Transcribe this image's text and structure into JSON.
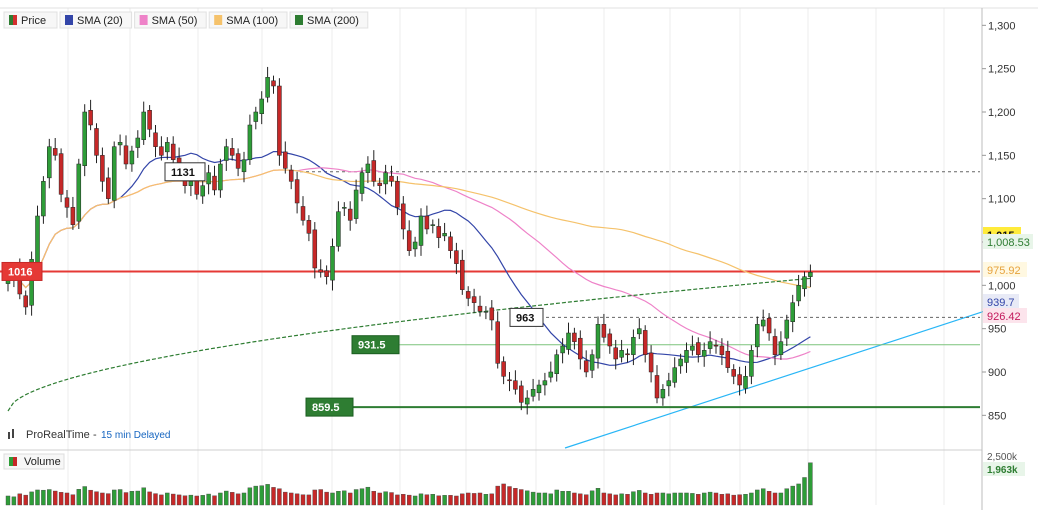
{
  "legend": {
    "items": [
      {
        "label": "Price",
        "color": "#2e7d32",
        "color2": "#d32f2f"
      },
      {
        "label": "SMA (20)",
        "color": "#3345a8"
      },
      {
        "label": "SMA (50)",
        "color": "#ee82c8"
      },
      {
        "label": "SMA (100)",
        "color": "#f5c26b"
      },
      {
        "label": "SMA (200)",
        "color": "#2e7d32"
      }
    ]
  },
  "watermark": {
    "brand": "ProRealTime",
    "separator": " - ",
    "delay": "15 min Delayed"
  },
  "volume_panel": {
    "label": "Volume",
    "axis_top": "2,500k",
    "last_value": "1,963k"
  },
  "colors": {
    "up": "#2e9d38",
    "down": "#c62828",
    "resistance": "#e53935",
    "support": "#2e7d32",
    "trendline": "#29b6f6"
  },
  "chart_data": {
    "type": "candlestick",
    "y_axis": {
      "ticks": [
        850,
        900,
        950,
        1000,
        1050,
        1100,
        1150,
        1200,
        1250,
        1300
      ],
      "tick_labels": [
        "850",
        "900",
        "950",
        "1,000",
        "1,050",
        "1,100",
        "1,150",
        "1,200",
        "1,250",
        "1,300"
      ],
      "ylim": [
        810,
        1320
      ]
    },
    "grid": "vertical",
    "levels": [
      {
        "label": "1016",
        "value": 1016,
        "style": "solid-red"
      },
      {
        "label": "1131",
        "value": 1131,
        "style": "dashed"
      },
      {
        "label": "963",
        "value": 963,
        "style": "dashed"
      },
      {
        "label": "931.5",
        "value": 931.5,
        "style": "solid-green"
      },
      {
        "label": "859.5",
        "value": 859.5,
        "style": "solid-green-bold"
      }
    ],
    "price_labels": [
      {
        "text": "1,015",
        "series": "Price"
      },
      {
        "text": "1,008.53",
        "series": "SMA (200)"
      },
      {
        "text": "975.92",
        "series": "SMA (100)"
      },
      {
        "text": "939.7",
        "series": "SMA (20)"
      },
      {
        "text": "926.42",
        "series": "SMA (50)"
      }
    ],
    "trendline": {
      "from": {
        "bar": 0.71,
        "value": 810
      },
      "to": {
        "bar": 1.23,
        "value": 970
      }
    },
    "close": [
      1010,
      1015,
      990,
      975,
      1030,
      1080,
      1120,
      1160,
      1150,
      1105,
      1090,
      1070,
      1140,
      1200,
      1185,
      1150,
      1120,
      1100,
      1160,
      1165,
      1140,
      1155,
      1170,
      1200,
      1180,
      1160,
      1150,
      1165,
      1145,
      1130,
      1115,
      1120,
      1105,
      1115,
      1130,
      1110,
      1140,
      1160,
      1150,
      1135,
      1145,
      1185,
      1200,
      1215,
      1240,
      1230,
      1150,
      1135,
      1120,
      1095,
      1075,
      1060,
      1020,
      1015,
      1010,
      1045,
      1085,
      1090,
      1075,
      1110,
      1130,
      1140,
      1120,
      1115,
      1130,
      1120,
      1090,
      1065,
      1040,
      1050,
      1080,
      1065,
      1070,
      1055,
      1060,
      1040,
      1025,
      995,
      985,
      980,
      970,
      970,
      960,
      910,
      895,
      890,
      880,
      865,
      870,
      880,
      885,
      890,
      900,
      920,
      930,
      945,
      935,
      915,
      900,
      920,
      955,
      940,
      930,
      915,
      925,
      920,
      940,
      950,
      920,
      900,
      870,
      880,
      890,
      905,
      915,
      925,
      930,
      920,
      925,
      935,
      930,
      920,
      905,
      895,
      885,
      895,
      925,
      955,
      960,
      945,
      920,
      935,
      960,
      980,
      1000,
      1010,
      1015
    ],
    "volume_k": [
      420,
      380,
      520,
      460,
      610,
      700,
      690,
      720,
      650,
      590,
      560,
      480,
      730,
      860,
      690,
      620,
      560,
      530,
      700,
      720,
      580,
      640,
      650,
      800,
      610,
      530,
      470,
      560,
      510,
      470,
      430,
      460,
      420,
      450,
      510,
      430,
      560,
      650,
      590,
      520,
      560,
      800,
      880,
      900,
      960,
      820,
      760,
      600,
      560,
      520,
      480,
      470,
      700,
      720,
      600,
      560,
      640,
      660,
      560,
      720,
      760,
      830,
      640,
      560,
      620,
      580,
      470,
      500,
      460,
      420,
      520,
      480,
      500,
      430,
      450,
      450,
      420,
      520,
      560,
      540,
      560,
      500,
      520,
      880,
      980,
      860,
      780,
      720,
      660,
      600,
      560,
      560,
      520,
      700,
      640,
      640,
      560,
      520,
      480,
      660,
      780,
      560,
      520,
      470,
      520,
      500,
      620,
      680,
      560,
      500,
      560,
      560,
      520,
      560,
      560,
      560,
      540,
      500,
      560,
      600,
      560,
      500,
      520,
      460,
      480,
      500,
      560,
      700,
      760,
      640,
      560,
      560,
      760,
      880,
      980,
      1280,
      1963
    ]
  }
}
